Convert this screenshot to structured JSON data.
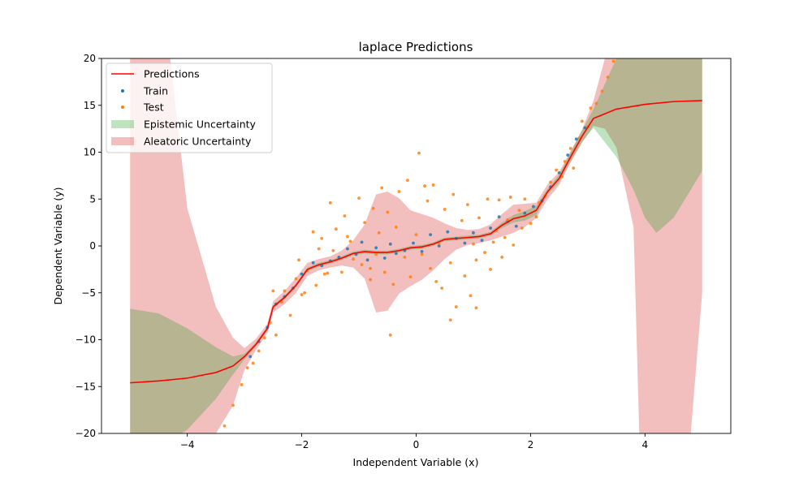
{
  "chart_data": {
    "type": "line",
    "title": "laplace Predictions",
    "xlabel": "Independent Variable (x)",
    "ylabel": "Dependent Variable (y)",
    "xlim": [
      -5.5,
      5.5
    ],
    "ylim": [
      -20,
      20
    ],
    "xticks": [
      -4,
      -2,
      0,
      2,
      4
    ],
    "yticks": [
      -20,
      -15,
      -10,
      -5,
      0,
      5,
      10,
      15,
      20
    ],
    "xtick_labels": [
      "−4",
      "−2",
      "0",
      "2",
      "4"
    ],
    "ytick_labels": [
      "−20",
      "−15",
      "−10",
      "−5",
      "0",
      "5",
      "10",
      "15",
      "20"
    ],
    "grid": false,
    "legend": {
      "placement": "top-left",
      "entries": [
        "Predictions",
        "Train",
        "Test",
        "Epistemic Uncertainty",
        "Aleatoric Uncertainty"
      ]
    },
    "colors": {
      "predictions": "#ff0000",
      "train": "#1f77b4",
      "test": "#ff7f0e",
      "epistemic": "#2ca02c",
      "aleatoric": "#d62728"
    },
    "predictions": {
      "name": "Predictions",
      "x": [
        -5,
        -4.5,
        -4,
        -3.5,
        -3.2,
        -3,
        -2.8,
        -2.6,
        -2.5,
        -2.3,
        -2.1,
        -1.9,
        -1.7,
        -1.5,
        -1.3,
        -1.1,
        -0.9,
        -0.7,
        -0.5,
        -0.3,
        -0.1,
        0.1,
        0.3,
        0.5,
        0.7,
        0.9,
        1.1,
        1.3,
        1.5,
        1.7,
        1.9,
        2.1,
        2.3,
        2.5,
        2.7,
        2.9,
        3.1,
        3.5,
        4,
        4.5,
        5
      ],
      "y": [
        -14.6,
        -14.4,
        -14.1,
        -13.5,
        -12.8,
        -11.8,
        -10.5,
        -8.8,
        -6.5,
        -5.5,
        -4.2,
        -2.5,
        -2.0,
        -1.7,
        -1.3,
        -0.8,
        -0.6,
        -0.7,
        -0.7,
        -0.5,
        -0.2,
        -0.1,
        0.2,
        0.7,
        0.8,
        0.9,
        1.0,
        1.3,
        2.2,
        2.9,
        3.2,
        3.8,
        5.8,
        7.2,
        9.5,
        11.7,
        13.6,
        14.6,
        15.1,
        15.4,
        15.5
      ]
    },
    "epistemic_band": {
      "name": "Epistemic Uncertainty",
      "x": [
        -5,
        -4.5,
        -4,
        -3.5,
        -3.2,
        -3,
        -2.8,
        -2.6,
        -2.5,
        -2.3,
        -2.1,
        -1.9,
        -1.7,
        -1.5,
        -1.3,
        -1.1,
        -0.9,
        -0.7,
        -0.5,
        -0.3,
        -0.1,
        0.1,
        0.3,
        0.5,
        0.7,
        0.9,
        1.1,
        1.3,
        1.5,
        1.7,
        1.9,
        2.1,
        2.3,
        2.5,
        2.7,
        2.9,
        3.1,
        3.5,
        3.8,
        4.0,
        4.2,
        4.5,
        5
      ],
      "upper": [
        -6.7,
        -7.2,
        -8.8,
        -10.8,
        -11.8,
        -11.5,
        -10.3,
        -8.6,
        -6.3,
        -5.3,
        -4.0,
        -2.3,
        -1.8,
        -1.5,
        -1.1,
        -0.6,
        -0.4,
        -0.5,
        -0.5,
        -0.3,
        0.0,
        0.1,
        0.4,
        0.9,
        1.0,
        1.1,
        1.2,
        1.5,
        2.5,
        3.3,
        3.7,
        4.3,
        6.1,
        7.6,
        10.0,
        12.3,
        14.6,
        20,
        20,
        20,
        20,
        20,
        20
      ],
      "lower": [
        -22.5,
        -21.5,
        -19.6,
        -16.3,
        -13.7,
        -12.1,
        -10.7,
        -9.0,
        -6.7,
        -5.7,
        -4.4,
        -2.7,
        -2.2,
        -1.9,
        -1.5,
        -1.0,
        -0.8,
        -0.9,
        -0.9,
        -0.7,
        -0.4,
        -0.3,
        0.0,
        0.5,
        0.6,
        0.7,
        0.8,
        1.1,
        1.9,
        2.5,
        2.7,
        3.3,
        5.5,
        6.8,
        9.0,
        11.1,
        12.6,
        9.5,
        6.0,
        3.0,
        1.4,
        3.0,
        8.0
      ]
    },
    "aleatoric_band": {
      "name": "Aleatoric Uncertainty",
      "x": [
        -5,
        -4.5,
        -4.3,
        -4,
        -3.5,
        -3.2,
        -3,
        -2.8,
        -2.6,
        -2.5,
        -2.3,
        -2.1,
        -1.9,
        -1.7,
        -1.5,
        -1.3,
        -1.1,
        -0.9,
        -0.7,
        -0.5,
        -0.3,
        -0.1,
        0.1,
        0.3,
        0.5,
        0.7,
        0.9,
        1.1,
        1.3,
        1.5,
        1.7,
        1.9,
        2.1,
        2.3,
        2.5,
        2.7,
        2.9,
        3.1,
        3.3,
        3.5,
        3.8,
        3.9,
        4.0,
        4.4,
        4.8,
        5
      ],
      "upper": [
        20,
        20,
        20,
        4.0,
        -6.5,
        -9.8,
        -10.9,
        -9.9,
        -8.3,
        -5.9,
        -4.8,
        -3.4,
        -1.8,
        -1.4,
        -1.1,
        -0.5,
        0.6,
        2.3,
        5.5,
        5.8,
        5.1,
        3.8,
        3.4,
        3.0,
        2.4,
        1.9,
        1.7,
        1.8,
        2.3,
        3.4,
        4.4,
        4.5,
        4.6,
        6.6,
        7.9,
        10.1,
        12.4,
        15.5,
        20,
        20,
        20,
        20,
        20,
        20,
        20,
        20
      ],
      "lower": [
        -20,
        -20,
        -20,
        -20,
        -20,
        -17.0,
        -13.2,
        -11.1,
        -9.3,
        -7.1,
        -6.2,
        -5.0,
        -3.2,
        -2.6,
        -2.3,
        -2.1,
        -2.3,
        -3.5,
        -7.1,
        -6.9,
        -5.1,
        -4.3,
        -3.6,
        -2.6,
        -1.4,
        -0.4,
        0.1,
        0.3,
        0.6,
        1.0,
        1.4,
        2.0,
        3.0,
        5.0,
        6.5,
        8.9,
        11.0,
        12.8,
        12.5,
        10.5,
        2.0,
        -20,
        -20,
        -20,
        -20,
        -5.0
      ]
    },
    "train_points": {
      "name": "Train",
      "x": [
        -2.9,
        -2.75,
        -2.6,
        -2.45,
        -2.3,
        -2.15,
        -2.0,
        -1.8,
        -1.65,
        -1.5,
        -1.35,
        -1.2,
        -1.05,
        -0.95,
        -0.85,
        -0.7,
        -0.55,
        -0.45,
        -0.35,
        -0.2,
        -0.05,
        0.1,
        0.25,
        0.4,
        0.55,
        0.7,
        0.85,
        1.0,
        1.15,
        1.3,
        1.45,
        1.6,
        1.75,
        1.9,
        2.05,
        2.2,
        2.35,
        2.5,
        2.65,
        2.8,
        2.95
      ],
      "y": [
        -11.8,
        -10.2,
        -8.7,
        -6.2,
        -5.4,
        -4.5,
        -3.0,
        -1.8,
        -2.1,
        -1.6,
        -1.2,
        -0.3,
        -0.9,
        0.4,
        -1.5,
        -0.2,
        -1.3,
        0.2,
        -0.8,
        -0.5,
        0.3,
        -0.6,
        1.2,
        0.0,
        1.5,
        0.8,
        0.3,
        1.4,
        0.6,
        1.9,
        3.1,
        2.6,
        2.1,
        3.5,
        4.2,
        4.8,
        6.3,
        7.8,
        9.7,
        11.4,
        12.6
      ]
    },
    "test_points": {
      "name": "Test",
      "x": [
        -3.35,
        -3.2,
        -3.05,
        -2.95,
        -2.85,
        -2.75,
        -2.65,
        -2.55,
        -2.45,
        -2.35,
        -2.3,
        -2.2,
        -2.1,
        -2.05,
        -1.95,
        -1.9,
        -1.8,
        -1.75,
        -1.65,
        -1.6,
        -1.5,
        -1.45,
        -1.4,
        -1.3,
        -1.25,
        -1.15,
        -1.1,
        -1.0,
        -0.95,
        -0.9,
        -0.8,
        -0.75,
        -0.7,
        -0.6,
        -0.55,
        -0.5,
        -0.4,
        -0.35,
        -0.3,
        -0.2,
        -0.15,
        -0.1,
        0.0,
        0.05,
        0.1,
        0.2,
        0.25,
        0.3,
        0.4,
        0.45,
        0.5,
        0.6,
        0.65,
        0.7,
        0.8,
        0.85,
        0.9,
        1.0,
        1.05,
        1.1,
        1.2,
        1.25,
        1.3,
        1.4,
        1.45,
        1.5,
        1.6,
        1.65,
        1.7,
        1.8,
        1.85,
        1.9,
        2.0,
        2.1,
        2.15,
        2.25,
        2.35,
        2.45,
        2.55,
        2.6,
        2.7,
        2.75,
        2.85,
        2.9,
        3.0,
        3.05,
        3.15,
        3.25,
        3.35,
        3.45,
        -2.5,
        -2.0,
        -1.7,
        -1.2,
        -0.8,
        -0.45,
        0.15,
        0.6,
        1.05,
        1.55,
        -0.65,
        0.35,
        -1.55,
        1.35,
        0.95
      ],
      "y": [
        -19.2,
        -17.0,
        -14.8,
        -13.0,
        -12.5,
        -11.2,
        -9.8,
        -8.2,
        -9.5,
        -6.0,
        -4.8,
        -7.4,
        -3.5,
        -1.5,
        -5.0,
        -2.6,
        1.5,
        -4.2,
        0.8,
        -3.0,
        4.6,
        -0.5,
        1.8,
        -2.8,
        3.2,
        0.5,
        -1.4,
        5.1,
        -2.0,
        2.5,
        -3.6,
        4.0,
        -0.9,
        6.2,
        -2.8,
        3.6,
        -4.1,
        2.0,
        5.8,
        -1.2,
        7.0,
        -3.3,
        1.2,
        9.9,
        -0.9,
        4.8,
        -2.4,
        6.5,
        0.3,
        -4.5,
        3.9,
        -1.8,
        5.5,
        -6.5,
        2.7,
        -3.2,
        4.4,
        0.2,
        -6.6,
        3.0,
        -0.7,
        5.0,
        -2.5,
        1.6,
        4.9,
        -1.2,
        2.8,
        5.2,
        0.1,
        3.8,
        1.9,
        5.0,
        2.4,
        3.1,
        4.6,
        5.3,
        6.8,
        8.1,
        7.4,
        9.0,
        10.4,
        8.3,
        11.5,
        13.3,
        12.7,
        14.7,
        15.2,
        16.5,
        18.0,
        19.7,
        -4.8,
        -5.2,
        -0.3,
        1.0,
        -2.4,
        -9.5,
        6.4,
        -7.9,
        -1.5,
        0.9,
        1.4,
        -3.8,
        -2.9,
        0.4,
        -5.3
      ]
    }
  }
}
